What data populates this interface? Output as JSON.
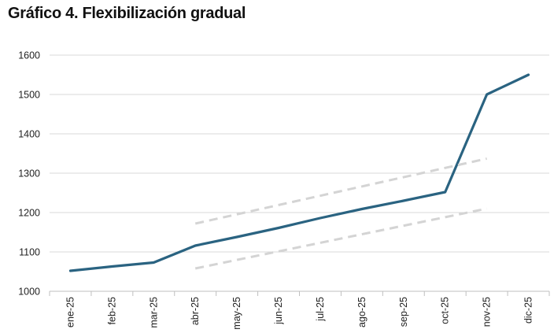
{
  "title": "Gráfico 4. Flexibilización gradual",
  "chart_data": {
    "type": "line",
    "title": "Gráfico 4. Flexibilización gradual",
    "xlabel": "",
    "ylabel": "",
    "categories": [
      "ene-25",
      "feb-25",
      "mar-25",
      "abr-25",
      "may-25",
      "jun-25",
      "jul-25",
      "ago-25",
      "sep-25",
      "oct-25",
      "nov-25",
      "dic-25"
    ],
    "ylim": [
      1000,
      1600
    ],
    "yticks": [
      1000,
      1100,
      1200,
      1300,
      1400,
      1500,
      1600
    ],
    "grid": true,
    "legend": "none",
    "series": [
      {
        "values": [
          1052,
          1063,
          1073,
          1116,
          1138,
          1161,
          1186,
          1209,
          1230,
          1252,
          1500,
          1550
        ],
        "color": "#2a6381",
        "style": "solid"
      },
      {
        "from": [
          "abr-25",
          1172
        ],
        "to": [
          "nov-25",
          1337
        ],
        "color": "#d4d4d4",
        "style": "dashed"
      },
      {
        "from": [
          "abr-25",
          1058
        ],
        "to": [
          "nov-25",
          1210
        ],
        "color": "#d4d4d4",
        "style": "dashed"
      }
    ]
  }
}
